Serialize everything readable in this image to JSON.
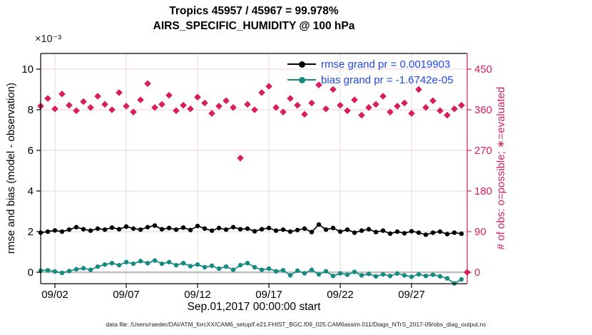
{
  "title": {
    "line1": "Tropics 45957 / 45967 = 99.978%",
    "line2": "AIRS_SPECIFIC_HUMIDITY @ 100 hPa"
  },
  "scale_note": "×10⁻³",
  "legend": {
    "text_color": "#1c49eb",
    "items": [
      {
        "label": "rmse grand pr = 0.0019903",
        "color": "#000000"
      },
      {
        "label": "bias grand pr = -1.6742e-05",
        "color": "#148a80"
      }
    ]
  },
  "axes": {
    "left": {
      "label": "rmse and bias (model - observation)",
      "ticks": [
        0,
        2,
        4,
        6,
        8,
        10
      ],
      "unit": "1e-3",
      "color": "#000000"
    },
    "right": {
      "label": "# of obs: o=possible; ∗=evaluated",
      "ticks": [
        0,
        90,
        180,
        270,
        360,
        450
      ],
      "color": "#d81e5c"
    },
    "x": {
      "label": "Sep.01,2017 00:00:00 start",
      "tick_labels": [
        "09/02",
        "09/07",
        "09/12",
        "09/17",
        "09/22",
        "09/27"
      ],
      "tick_days": [
        1,
        6,
        11,
        16,
        21,
        26
      ],
      "start_day": 0,
      "end_day": 29.9
    }
  },
  "footer": "data file: /Users/raeder/DAI/ATM_forcXX/CAM6_setup/f.e21.FHIST_BGC.f09_025.CAM6assim.011/Diags_NTrS_2017-09/obs_diag_output.nc",
  "chart_data": {
    "type": "line+scatter",
    "time_step_days": 0.5,
    "x_start": "Sep.01,2017 00:00",
    "ylim_left_1e3": [
      -0.6,
      10.8
    ],
    "ylim_right": [
      -27,
      486
    ],
    "grid": {
      "h_color": "#f3ccd8",
      "v_color": "#dcdcdc",
      "zero_line_color": "#c0c0c0"
    },
    "series": [
      {
        "name": "rmse",
        "axis": "left",
        "scale": "1e-3",
        "color": "#000000",
        "marker": "circle",
        "values": [
          1.95,
          2.0,
          2.06,
          2.0,
          2.1,
          2.22,
          2.12,
          2.05,
          2.15,
          2.1,
          2.2,
          2.12,
          2.25,
          2.15,
          2.1,
          2.22,
          2.3,
          2.12,
          2.18,
          2.1,
          2.2,
          2.08,
          2.28,
          2.15,
          2.05,
          2.18,
          2.1,
          2.22,
          2.12,
          2.15,
          2.02,
          2.12,
          2.18,
          2.05,
          2.1,
          2.0,
          2.08,
          2.15,
          1.98,
          2.35,
          2.1,
          2.18,
          2.0,
          2.1,
          1.95,
          2.05,
          2.12,
          1.98,
          2.05,
          1.9,
          2.0,
          1.92,
          2.02,
          1.95,
          1.85,
          1.95,
          2.0,
          1.88,
          1.95,
          1.9
        ]
      },
      {
        "name": "bias",
        "axis": "left",
        "scale": "1e-3",
        "color": "#148a80",
        "marker": "circle",
        "values": [
          0.08,
          0.1,
          0.04,
          -0.03,
          0.06,
          0.15,
          0.2,
          0.12,
          0.28,
          0.38,
          0.45,
          0.35,
          0.5,
          0.42,
          0.55,
          0.45,
          0.58,
          0.42,
          0.5,
          0.35,
          0.45,
          0.3,
          0.38,
          0.25,
          0.32,
          0.18,
          0.28,
          0.12,
          0.35,
          0.45,
          0.25,
          0.12,
          0.18,
          0.05,
          0.1,
          -0.15,
          0.08,
          -0.05,
          0.12,
          -0.1,
          0.05,
          -0.18,
          -0.05,
          -0.12,
          0.02,
          -0.15,
          -0.08,
          -0.2,
          -0.1,
          -0.18,
          -0.06,
          -0.15,
          -0.22,
          -0.1,
          -0.18,
          -0.12,
          -0.2,
          -0.3,
          -0.55,
          -0.35
        ]
      },
      {
        "name": "num_obs_evaluated",
        "axis": "right",
        "color": "#d81e5c",
        "marker": "diamond",
        "values": [
          368,
          385,
          362,
          395,
          370,
          358,
          378,
          365,
          390,
          372,
          360,
          398,
          368,
          355,
          382,
          418,
          365,
          372,
          392,
          358,
          370,
          362,
          388,
          375,
          352,
          368,
          380,
          365,
          253,
          372,
          360,
          398,
          412,
          365,
          355,
          385,
          370,
          350,
          375,
          415,
          362,
          405,
          370,
          358,
          382,
          348,
          365,
          372,
          390,
          355,
          368,
          375,
          352,
          405,
          365,
          380,
          358,
          348,
          362,
          370
        ],
        "extra_points": [
          {
            "day": 29.9,
            "value": 0
          }
        ]
      }
    ]
  }
}
